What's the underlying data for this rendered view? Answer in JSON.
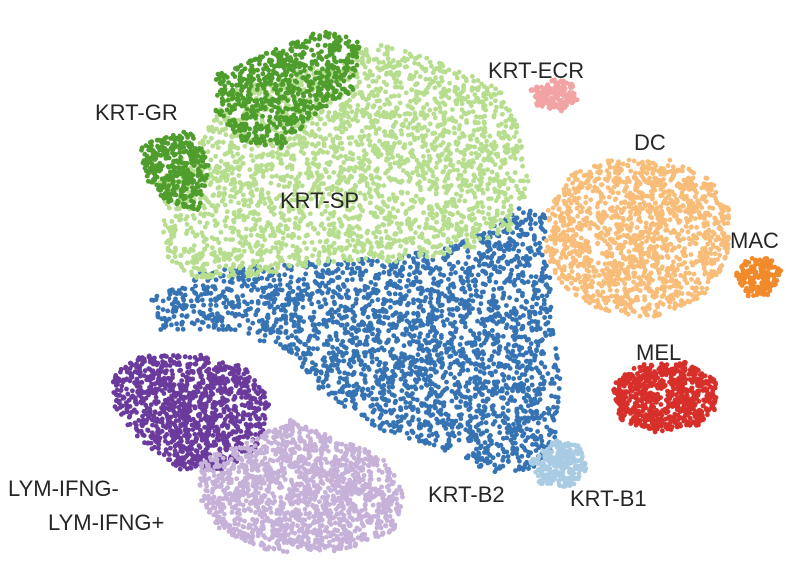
{
  "chart_data": {
    "type": "scatter",
    "title": "",
    "xlabel": "",
    "ylabel": "",
    "grid": false,
    "legend": "none",
    "clusters": [
      {
        "name": "KRT-SP",
        "color": "#b7de8e"
      },
      {
        "name": "KRT-GR",
        "color": "#4f9d2d"
      },
      {
        "name": "KRT-B2",
        "color": "#3673b3"
      },
      {
        "name": "KRT-B1",
        "color": "#a9cce3"
      },
      {
        "name": "KRT-ECR",
        "color": "#f2a3a3"
      },
      {
        "name": "DC",
        "color": "#f7bd79"
      },
      {
        "name": "MAC",
        "color": "#f08a2b"
      },
      {
        "name": "MEL",
        "color": "#d7302b"
      },
      {
        "name": "LYM-IFNG-",
        "color": "#6a3b9c"
      },
      {
        "name": "LYM-IFNG+",
        "color": "#c6b2d8"
      }
    ]
  }
}
